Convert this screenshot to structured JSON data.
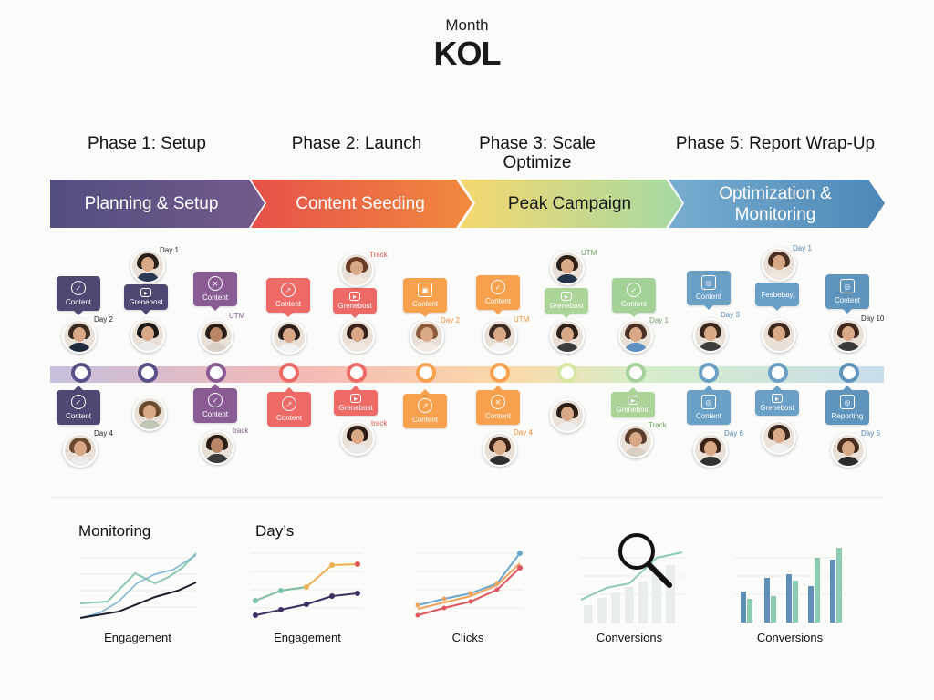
{
  "header": {
    "subtitle": "Month",
    "title": "KOL"
  },
  "phases": [
    {
      "title": "Phase 1: Setup",
      "arrow": "Planning & Setup",
      "color": "#5a4f86"
    },
    {
      "title": "Phase 2: Launch",
      "arrow": "Content Seeding",
      "color": "#ec5a46"
    },
    {
      "title": "Phase 3: Scale Optimize",
      "arrow": "Peak Campaign",
      "color": "#b8dba5"
    },
    {
      "title": "Phase 5: Report Wrap-Up",
      "arrow": "Optimization & Monitoring",
      "color": "#5f98bf"
    }
  ],
  "timeline": {
    "top_boxes": [
      "Content",
      "Grenebost",
      "Content",
      "Content",
      "Grenebost",
      "Content",
      "Content",
      "Grenebost",
      "Content",
      "Content",
      "Fesbebay",
      "Content"
    ],
    "bottom_boxes": [
      "Content",
      "Content",
      "Content",
      "Grenebost",
      "Content",
      "Content",
      "Grenebost",
      "Content",
      "Grenebost",
      "Reporting"
    ],
    "tags": [
      "Day 1",
      "Day 2",
      "UTM",
      "Track",
      "Day 2",
      "UTM",
      "UTM",
      "Day 1",
      "Day 3",
      "Day 1",
      "Day 10",
      "Day 4",
      "track",
      "track",
      "Day 4",
      "Track",
      "Day 6",
      "Day 5"
    ]
  },
  "monitoring": {
    "title": "Monitoring",
    "days_title": "Day’s",
    "captions": [
      "Engagement",
      "Engagement",
      "Clicks",
      "Conversions",
      "Conversions"
    ]
  }
}
